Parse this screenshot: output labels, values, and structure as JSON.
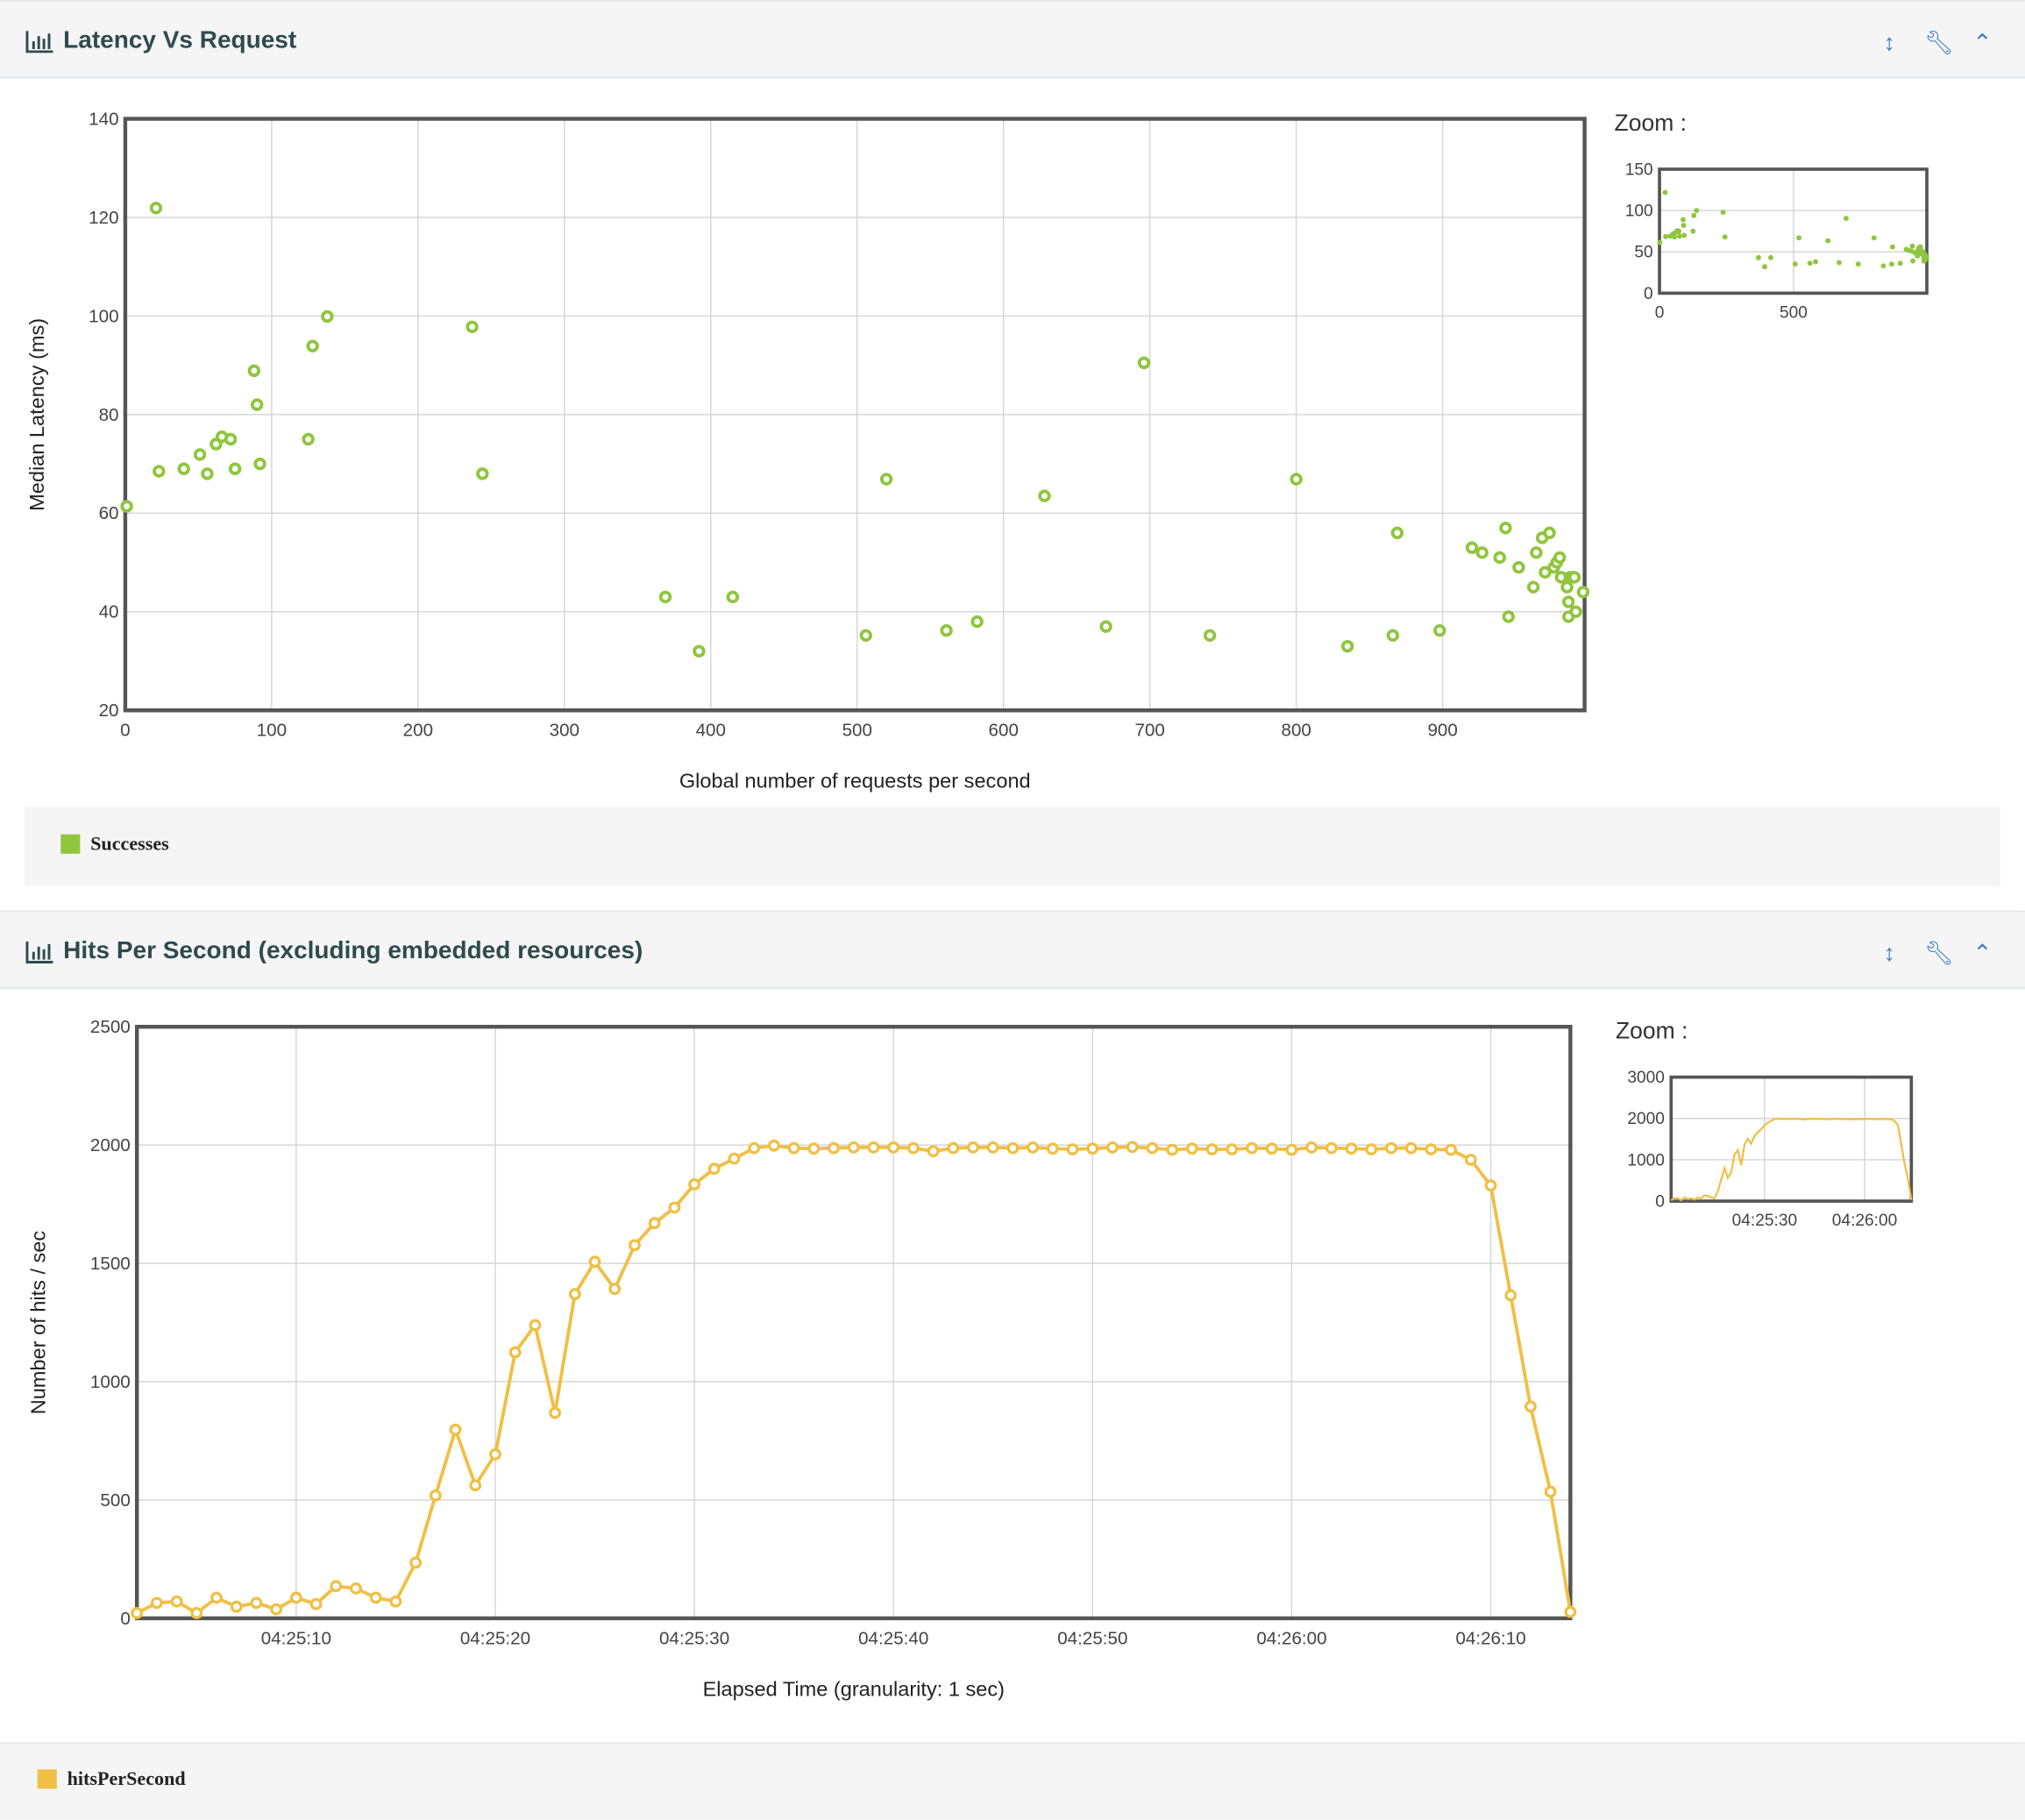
{
  "panels": [
    {
      "title": "Latency Vs Request",
      "zoom_label": "Zoom :",
      "legend": "Successes",
      "tools": [
        "expand-vertical-icon",
        "wrench-icon",
        "chevron-up-icon"
      ]
    },
    {
      "title": "Hits Per Second (excluding embedded resources)",
      "zoom_label": "Zoom :",
      "legend": "hitsPerSecond",
      "tools": [
        "expand-vertical-icon",
        "wrench-icon",
        "chevron-up-icon"
      ]
    }
  ],
  "colors": {
    "successes": "#8fc63e",
    "hits": "#f0bf44",
    "title": "#2e4b4f",
    "icon": "#3a7fc1"
  },
  "chart_data": [
    {
      "type": "scatter",
      "title": "Latency Vs Request",
      "xlabel": "Global number of requests per second",
      "ylabel": "Median Latency (ms)",
      "xlim": [
        0,
        997
      ],
      "ylim": [
        20,
        140
      ],
      "xticks": [
        0,
        100,
        200,
        300,
        400,
        500,
        600,
        700,
        800,
        900
      ],
      "yticks": [
        20,
        40,
        60,
        80,
        100,
        120,
        140
      ],
      "grid": true,
      "legend_position": "bottom",
      "series": [
        {
          "name": "Successes",
          "color": "#8fc63e",
          "points": [
            [
              1,
              61.4
            ],
            [
              21,
              121.9
            ],
            [
              23,
              68.5
            ],
            [
              40,
              69
            ],
            [
              51,
              71.9
            ],
            [
              56,
              68
            ],
            [
              62,
              74
            ],
            [
              66,
              75.5
            ],
            [
              72,
              75
            ],
            [
              75,
              69
            ],
            [
              88,
              88.9
            ],
            [
              90,
              82
            ],
            [
              92,
              70
            ],
            [
              125,
              75
            ],
            [
              128,
              93.9
            ],
            [
              138,
              99.9
            ],
            [
              237,
              97.8
            ],
            [
              244,
              68
            ],
            [
              369,
              43
            ],
            [
              392,
              32
            ],
            [
              415,
              43
            ],
            [
              506,
              35.2
            ],
            [
              520,
              66.9
            ],
            [
              561,
              36.2
            ],
            [
              582,
              38
            ],
            [
              628,
              63.5
            ],
            [
              670,
              37
            ],
            [
              696,
              90.5
            ],
            [
              741,
              35.2
            ],
            [
              800,
              66.9
            ],
            [
              835,
              33
            ],
            [
              866,
              35.2
            ],
            [
              869,
              56
            ],
            [
              898,
              36.2
            ],
            [
              920,
              53
            ],
            [
              927,
              52
            ],
            [
              939,
              51
            ],
            [
              943,
              57
            ],
            [
              945,
              39
            ],
            [
              952,
              49
            ],
            [
              962,
              45
            ],
            [
              964,
              52
            ],
            [
              968,
              55
            ],
            [
              970,
              48
            ],
            [
              973,
              56
            ],
            [
              976,
              49
            ],
            [
              978,
              50
            ],
            [
              980,
              51
            ],
            [
              981,
              47
            ],
            [
              985,
              45
            ],
            [
              986,
              42
            ],
            [
              987,
              47
            ],
            [
              989,
              47
            ],
            [
              990,
              47
            ],
            [
              986,
              39
            ],
            [
              991,
              40
            ],
            [
              996,
              44
            ]
          ]
        }
      ],
      "zoom": {
        "xlim": [
          0,
          997
        ],
        "ylim": [
          0,
          150
        ],
        "xticks": [
          0,
          500
        ],
        "yticks": [
          0,
          50,
          100,
          150
        ]
      }
    },
    {
      "type": "line",
      "title": "Hits Per Second (excluding embedded resources)",
      "xlabel": "Elapsed Time (granularity: 1 sec)",
      "ylabel": "Number of hits / sec",
      "x_start": "04:25:02",
      "x_step_seconds": 1,
      "xlim": [
        "04:25:02",
        "04:26:14"
      ],
      "ylim": [
        0,
        2500
      ],
      "xticks": [
        "04:25:10",
        "04:25:20",
        "04:25:30",
        "04:25:40",
        "04:25:50",
        "04:26:00",
        "04:26:10"
      ],
      "yticks": [
        0,
        500,
        1000,
        1500,
        2000,
        2500
      ],
      "grid": true,
      "legend_position": "bottom",
      "series": [
        {
          "name": "hitsPerSecond",
          "color": "#f0bf44",
          "values": [
            22,
            65,
            71,
            22,
            87,
            49,
            65,
            38,
            87,
            60,
            136,
            126,
            87,
            71,
            235,
            519,
            797,
            562,
            693,
            1124,
            1239,
            868,
            1370,
            1507,
            1392,
            1577,
            1670,
            1736,
            1834,
            1900,
            1943,
            1987,
            1998,
            1987,
            1985,
            1987,
            1990,
            1990,
            1990,
            1987,
            1974,
            1987,
            1990,
            1990,
            1987,
            1990,
            1985,
            1982,
            1985,
            1990,
            1992,
            1987,
            1980,
            1985,
            1982,
            1982,
            1987,
            1985,
            1980,
            1990,
            1987,
            1985,
            1982,
            1987,
            1987,
            1982,
            1980,
            1938,
            1829,
            1365,
            895,
            535,
            27
          ]
        }
      ],
      "zoom": {
        "ylim": [
          0,
          3000
        ],
        "xticks": [
          "04:25:30",
          "04:26:00"
        ],
        "yticks": [
          0,
          1000,
          2000,
          3000
        ]
      }
    }
  ]
}
